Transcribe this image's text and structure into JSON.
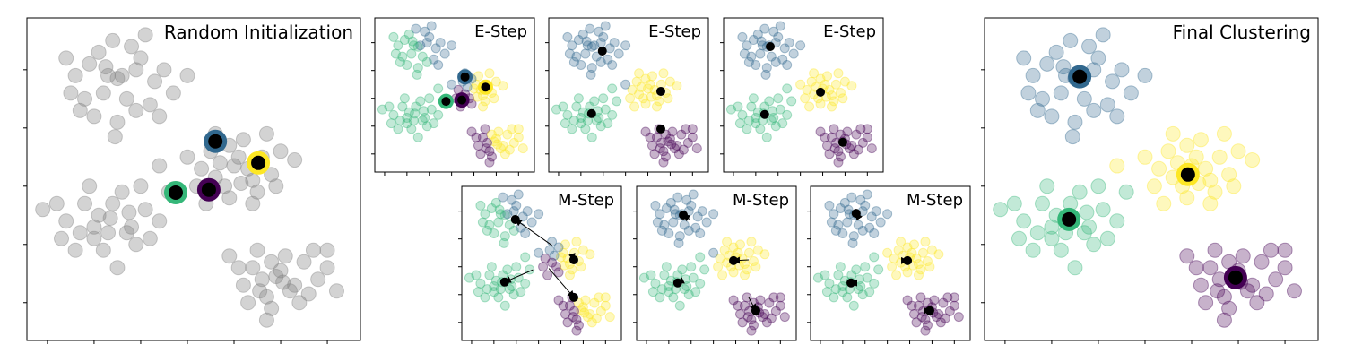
{
  "chart_data": {
    "type": "scatter",
    "xlim": [
      -0.44,
      6.71
    ],
    "ylim": [
      -0.65,
      4.89
    ],
    "xticks": [
      0,
      1,
      2,
      3,
      4,
      5,
      6
    ],
    "yticks": [
      0,
      1,
      2,
      3,
      4
    ],
    "tick_labels_shown": false,
    "grid": false,
    "colors": {
      "blue": "#31688e",
      "yellow": "#fde725",
      "green": "#35b779",
      "purple": "#440154",
      "gray": "#808080",
      "centroid": "#000000"
    },
    "cluster_order": [
      "blue",
      "yellow",
      "green",
      "purple"
    ],
    "points": {
      "blue": [
        [
          1.5,
          3.85
        ],
        [
          0.9,
          4.1
        ],
        [
          1.2,
          3.6
        ],
        [
          2.0,
          4.2
        ],
        [
          1.7,
          3.5
        ],
        [
          0.6,
          3.9
        ],
        [
          2.3,
          3.8
        ],
        [
          1.1,
          4.3
        ],
        [
          1.9,
          3.3
        ],
        [
          0.8,
          3.5
        ],
        [
          2.5,
          4.0
        ],
        [
          1.4,
          4.5
        ],
        [
          0.4,
          4.2
        ],
        [
          1.6,
          3.9
        ],
        [
          2.2,
          3.4
        ],
        [
          1.0,
          3.2
        ],
        [
          1.8,
          4.4
        ],
        [
          2.7,
          3.6
        ],
        [
          0.7,
          3.3
        ],
        [
          1.3,
          3.9
        ],
        [
          2.1,
          4.6
        ],
        [
          1.5,
          3.1
        ],
        [
          0.5,
          3.6
        ],
        [
          2.4,
          3.2
        ],
        [
          1.9,
          4.0
        ],
        [
          1.25,
          4.05
        ],
        [
          3.0,
          3.9
        ],
        [
          1.45,
          2.85
        ]
      ],
      "yellow": [
        [
          4.0,
          2.35
        ],
        [
          3.5,
          2.6
        ],
        [
          4.4,
          2.1
        ],
        [
          3.8,
          2.0
        ],
        [
          4.6,
          2.5
        ],
        [
          3.3,
          2.3
        ],
        [
          4.2,
          2.8
        ],
        [
          3.9,
          1.8
        ],
        [
          4.8,
          2.2
        ],
        [
          3.6,
          2.9
        ],
        [
          4.5,
          1.9
        ],
        [
          3.2,
          2.0
        ],
        [
          4.1,
          2.5
        ],
        [
          5.0,
          2.6
        ],
        [
          3.7,
          2.4
        ],
        [
          4.3,
          2.3
        ],
        [
          3.0,
          2.5
        ],
        [
          4.7,
          2.9
        ],
        [
          3.9,
          2.7
        ],
        [
          4.4,
          1.7
        ],
        [
          3.4,
          1.7
        ],
        [
          4.9,
          2.0
        ],
        [
          3.6,
          2.15
        ],
        [
          4.15,
          2.05
        ],
        [
          2.4,
          2.35
        ],
        [
          5.3,
          2.45
        ]
      ],
      "green": [
        [
          1.35,
          1.45
        ],
        [
          0.8,
          1.7
        ],
        [
          1.8,
          1.3
        ],
        [
          1.0,
          1.1
        ],
        [
          1.6,
          1.9
        ],
        [
          0.4,
          1.4
        ],
        [
          2.1,
          1.6
        ],
        [
          1.2,
          0.9
        ],
        [
          0.7,
          1.2
        ],
        [
          1.9,
          1.0
        ],
        [
          1.4,
          1.7
        ],
        [
          2.4,
          1.4
        ],
        [
          0.2,
          1.7
        ],
        [
          1.1,
          1.5
        ],
        [
          1.7,
          1.2
        ],
        [
          0.9,
          2.0
        ],
        [
          2.0,
          2.0
        ],
        [
          1.5,
          0.6
        ],
        [
          0.6,
          0.9
        ],
        [
          1.3,
          1.2
        ],
        [
          2.6,
          1.9
        ],
        [
          -0.1,
          1.6
        ],
        [
          1.75,
          1.55
        ],
        [
          1.0,
          1.3
        ],
        [
          2.2,
          1.1
        ],
        [
          0.3,
          1.1
        ]
      ],
      "purple": [
        [
          4.9,
          0.45
        ],
        [
          4.4,
          0.6
        ],
        [
          5.3,
          0.3
        ],
        [
          4.7,
          0.1
        ],
        [
          5.5,
          0.7
        ],
        [
          4.2,
          0.3
        ],
        [
          5.1,
          0.8
        ],
        [
          4.8,
          -0.1
        ],
        [
          5.8,
          0.4
        ],
        [
          4.5,
          0.9
        ],
        [
          5.4,
          0.0
        ],
        [
          4.1,
          0.6
        ],
        [
          5.0,
          0.55
        ],
        [
          6.0,
          0.6
        ],
        [
          4.6,
          0.4
        ],
        [
          5.2,
          0.2
        ],
        [
          3.9,
          0.8
        ],
        [
          5.7,
          0.9
        ],
        [
          4.8,
          0.7
        ],
        [
          5.6,
          0.15
        ],
        [
          4.3,
          0.0
        ],
        [
          6.2,
          0.2
        ],
        [
          5.05,
          0.35
        ],
        [
          4.55,
          0.2
        ],
        [
          6.0,
          0.9
        ],
        [
          4.7,
          -0.3
        ]
      ]
    },
    "panels": [
      {
        "title": "Random Initialization",
        "mode": "initial",
        "centroids": [
          [
            3.6,
            2.77
          ],
          [
            4.52,
            2.4
          ],
          [
            2.75,
            1.89
          ],
          [
            3.46,
            1.94
          ]
        ]
      },
      {
        "title": "E-Step",
        "mode": "estep",
        "ring": true,
        "centroids": [
          [
            3.6,
            2.77
          ],
          [
            4.52,
            2.4
          ],
          [
            2.75,
            1.89
          ],
          [
            3.46,
            1.94
          ]
        ]
      },
      {
        "title": "E-Step",
        "mode": "estep",
        "ring": false,
        "centroids": [
          [
            1.96,
            3.7
          ],
          [
            4.58,
            2.25
          ],
          [
            1.48,
            1.45
          ],
          [
            4.58,
            0.9
          ]
        ]
      },
      {
        "title": "E-Step",
        "mode": "estep",
        "ring": false,
        "centroids": [
          [
            1.65,
            3.86
          ],
          [
            3.9,
            2.22
          ],
          [
            1.4,
            1.42
          ],
          [
            4.9,
            0.42
          ]
        ]
      },
      {
        "title": "M-Step",
        "mode": "mstep",
        "prev_centroids": [
          [
            3.6,
            2.77
          ],
          [
            4.52,
            2.4
          ],
          [
            2.75,
            1.89
          ],
          [
            3.46,
            1.94
          ]
        ],
        "centroids": [
          [
            1.96,
            3.7
          ],
          [
            4.58,
            2.25
          ],
          [
            1.48,
            1.45
          ],
          [
            4.58,
            0.9
          ]
        ]
      },
      {
        "title": "M-Step",
        "mode": "mstep",
        "prev_centroids": [
          [
            1.96,
            3.7
          ],
          [
            4.58,
            2.25
          ],
          [
            1.48,
            1.45
          ],
          [
            4.58,
            0.9
          ]
        ],
        "centroids": [
          [
            1.65,
            3.86
          ],
          [
            3.9,
            2.22
          ],
          [
            1.4,
            1.42
          ],
          [
            4.9,
            0.42
          ]
        ]
      },
      {
        "title": "M-Step",
        "mode": "mstep",
        "prev_centroids": [
          [
            1.65,
            3.86
          ],
          [
            3.9,
            2.22
          ],
          [
            1.4,
            1.42
          ],
          [
            4.9,
            0.42
          ]
        ],
        "centroids": [
          [
            1.6,
            3.92
          ],
          [
            3.9,
            2.22
          ],
          [
            1.37,
            1.42
          ],
          [
            4.9,
            0.42
          ]
        ]
      },
      {
        "title": "Final Clustering",
        "mode": "final",
        "centroids": [
          [
            1.6,
            3.88
          ],
          [
            3.92,
            2.2
          ],
          [
            1.37,
            1.43
          ],
          [
            4.94,
            0.43
          ]
        ]
      }
    ]
  }
}
